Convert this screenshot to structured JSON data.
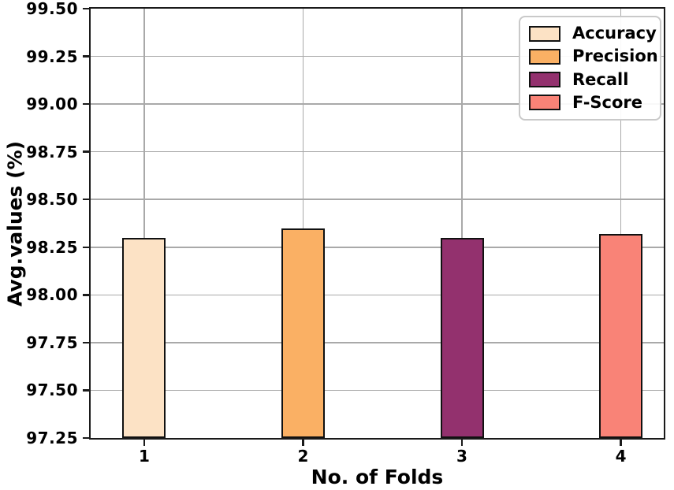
{
  "chart_data": {
    "type": "bar",
    "title": "",
    "xlabel": "No. of Folds",
    "ylabel": "Avg.values (%)",
    "categories": [
      "1",
      "2",
      "3",
      "4"
    ],
    "series": [
      {
        "name": "Accuracy",
        "x": 1,
        "value": 98.3,
        "color": "#FCE2C5"
      },
      {
        "name": "Precision",
        "x": 2,
        "value": 98.35,
        "color": "#FAB064"
      },
      {
        "name": "Recall",
        "x": 3,
        "value": 98.3,
        "color": "#93316E"
      },
      {
        "name": "F-Score",
        "x": 4,
        "value": 98.32,
        "color": "#F98377"
      }
    ],
    "legend": [
      "Accuracy",
      "Precision",
      "Recall",
      "F-Score"
    ],
    "legend_position": "upper right",
    "yticks": [
      "97.25",
      "97.50",
      "97.75",
      "98.00",
      "98.25",
      "98.50",
      "98.75",
      "99.00",
      "99.25",
      "99.50"
    ],
    "ylim": [
      97.25,
      99.5
    ],
    "xlim": [
      0.663,
      4.27
    ],
    "bar_width": 0.273,
    "grid": true,
    "colors": {
      "grid": "#a9a9a9",
      "spine": "#1a1a1a",
      "bar_edge": "#111111",
      "text": "#000000",
      "legend_edge": "#c9c9c9",
      "background": "#ffffff"
    }
  }
}
